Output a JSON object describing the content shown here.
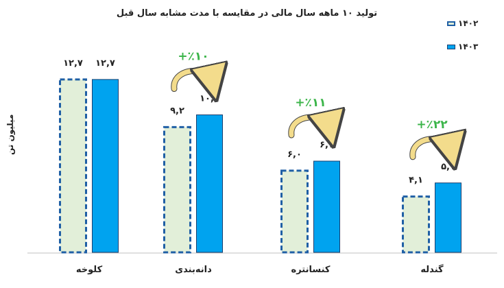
{
  "title": "تولید ۱۰ ماهه سال مالی در مقایسه با مدت مشابه سال قبل",
  "colors": {
    "prev_fill": "#e2efd9",
    "prev_border": "#1f5fa5",
    "curr_fill": "#00a3ef",
    "curr_border": "#1a3e6e",
    "growth": "#3cb54a",
    "arrow": "#f3dc8c"
  },
  "chart_data": {
    "type": "bar",
    "title": "تولید ۱۰ ماهه سال مالی در مقایسه با مدت مشابه سال قبل",
    "ylabel": "میلیون تن",
    "xlabel": "",
    "categories": [
      "کلوخه",
      "دانه‌بندی",
      "کنسانتره",
      "گندله"
    ],
    "ylim": [
      0,
      13.5
    ],
    "grid": false,
    "legend_position": "top-right",
    "series": [
      {
        "name": "۱۴۰۲",
        "style": "dashed",
        "values": [
          12.7,
          9.2,
          6.0,
          4.1
        ],
        "labels": [
          "۱۲,۷",
          "۹,۲",
          "۶,۰",
          "۴,۱"
        ]
      },
      {
        "name": "۱۴۰۳",
        "style": "solid",
        "values": [
          12.7,
          10.1,
          6.7,
          5.1
        ],
        "labels": [
          "۱۲,۷",
          "۱۰,۱",
          "۶,۷",
          "۵,۱"
        ]
      }
    ],
    "growth_annotations": [
      "",
      "+٪۱۰",
      "+٪۱۱",
      "+٪۲۲"
    ]
  }
}
